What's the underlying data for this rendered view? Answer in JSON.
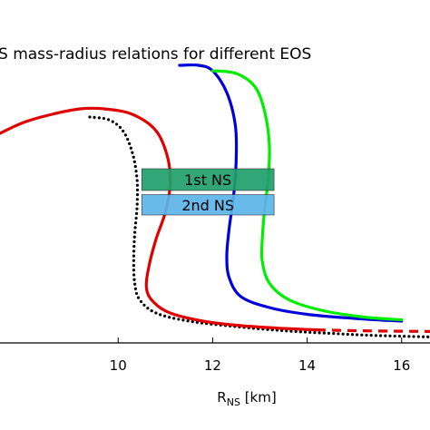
{
  "chart_data": {
    "type": "line",
    "title": "S mass-radius relations for different EOS",
    "xlabel": "R",
    "xlabel_sub": "NS",
    "xlabel_unit": " [km]",
    "ylabel": "",
    "xlim": [
      7.5,
      16.6
    ],
    "ylim": [
      0,
      1
    ],
    "x_ticks": [
      10,
      12,
      14,
      16
    ],
    "x_tick_labels": [
      "10",
      "12",
      "14",
      "16"
    ],
    "grid": false,
    "series": [
      {
        "style": "dotted",
        "color": "#000000",
        "points": [
          [
            9.4,
            0.83
          ],
          [
            9.8,
            0.82
          ],
          [
            10.1,
            0.78
          ],
          [
            10.3,
            0.7
          ],
          [
            10.4,
            0.6
          ],
          [
            10.4,
            0.5
          ],
          [
            10.35,
            0.4
          ],
          [
            10.33,
            0.3
          ],
          [
            10.35,
            0.22
          ],
          [
            10.45,
            0.16
          ],
          [
            10.8,
            0.11
          ],
          [
            11.5,
            0.08
          ],
          [
            12.5,
            0.06
          ],
          [
            13.5,
            0.045
          ],
          [
            14.5,
            0.035
          ],
          [
            15.5,
            0.027
          ],
          [
            16.6,
            0.022
          ]
        ]
      },
      {
        "style": "solid",
        "color": "#e00000",
        "points": [
          [
            7.5,
            0.77
          ],
          [
            8.0,
            0.81
          ],
          [
            8.6,
            0.84
          ],
          [
            9.2,
            0.86
          ],
          [
            9.7,
            0.86
          ],
          [
            10.3,
            0.84
          ],
          [
            10.8,
            0.78
          ],
          [
            11.05,
            0.68
          ],
          [
            11.1,
            0.58
          ],
          [
            11.0,
            0.48
          ],
          [
            10.8,
            0.38
          ],
          [
            10.65,
            0.28
          ],
          [
            10.6,
            0.2
          ],
          [
            10.75,
            0.15
          ],
          [
            11.1,
            0.11
          ],
          [
            11.8,
            0.08
          ],
          [
            12.5,
            0.065
          ],
          [
            13.3,
            0.055
          ],
          [
            14.2,
            0.048
          ]
        ]
      },
      {
        "style": "dashed",
        "color": "#e00000",
        "points": [
          [
            14.2,
            0.048
          ],
          [
            15.0,
            0.045
          ],
          [
            16.0,
            0.043
          ],
          [
            16.6,
            0.042
          ]
        ]
      },
      {
        "style": "solid",
        "color": "#0000dd",
        "points": [
          [
            11.3,
            1.02
          ],
          [
            11.7,
            1.02
          ],
          [
            12.0,
            1.0
          ],
          [
            12.3,
            0.92
          ],
          [
            12.48,
            0.8
          ],
          [
            12.5,
            0.68
          ],
          [
            12.45,
            0.55
          ],
          [
            12.35,
            0.42
          ],
          [
            12.3,
            0.32
          ],
          [
            12.35,
            0.24
          ],
          [
            12.6,
            0.17
          ],
          [
            13.2,
            0.13
          ],
          [
            14.0,
            0.105
          ],
          [
            15.0,
            0.09
          ],
          [
            16.0,
            0.08
          ]
        ]
      },
      {
        "style": "solid",
        "color": "#00ee00",
        "points": [
          [
            12.0,
            1.0
          ],
          [
            12.5,
            0.99
          ],
          [
            12.9,
            0.94
          ],
          [
            13.1,
            0.85
          ],
          [
            13.2,
            0.73
          ],
          [
            13.18,
            0.61
          ],
          [
            13.1,
            0.49
          ],
          [
            13.05,
            0.38
          ],
          [
            13.05,
            0.3
          ],
          [
            13.2,
            0.22
          ],
          [
            13.6,
            0.16
          ],
          [
            14.3,
            0.12
          ],
          [
            15.2,
            0.095
          ],
          [
            16.0,
            0.085
          ]
        ]
      }
    ],
    "bands": [
      {
        "label": "1st NS",
        "x": [
          10.5,
          13.3
        ],
        "y": [
          0.56,
          0.64
        ],
        "color": "#1f9e6a"
      },
      {
        "label": "2nd NS",
        "x": [
          10.5,
          13.3
        ],
        "y": [
          0.47,
          0.545
        ],
        "color": "#5ab4e8"
      }
    ]
  }
}
